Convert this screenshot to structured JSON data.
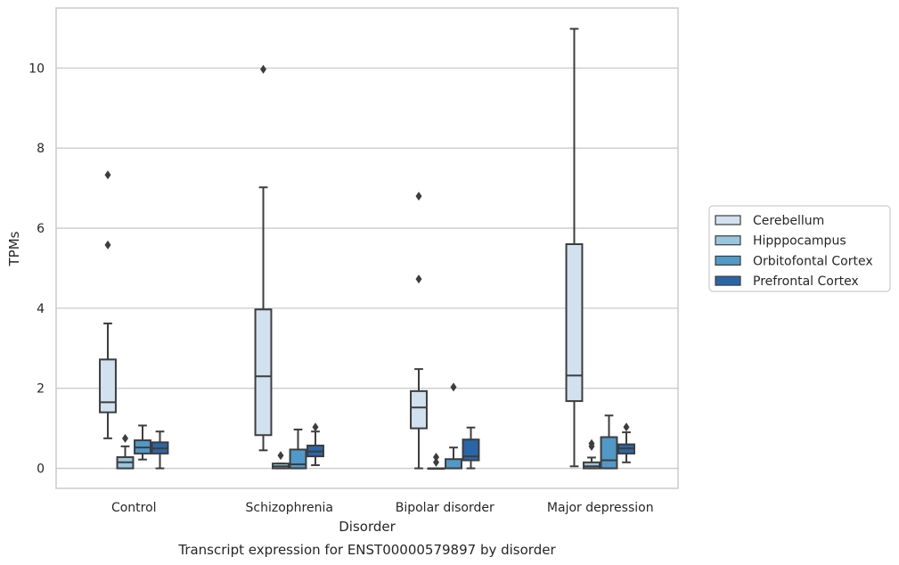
{
  "chart_data": {
    "type": "box",
    "title": "",
    "caption": "Transcript expression for ENST00000579897 by disorder",
    "xlabel": "Disorder",
    "ylabel": "TPMs",
    "ylim": [
      -0.5,
      11.5
    ],
    "yticks": [
      0,
      2,
      4,
      6,
      8,
      10
    ],
    "grid": true,
    "legend_position": "right",
    "categories": [
      "Control",
      "Schizophrenia",
      "Bipolar disorder",
      "Major depression"
    ],
    "series": [
      {
        "name": "Cerebellum",
        "color": "#d1e1f0",
        "boxes": [
          {
            "whisker_low": 0.75,
            "q1": 1.4,
            "median": 1.65,
            "q3": 2.72,
            "whisker_high": 3.62,
            "outliers": [
              5.58,
              7.33
            ]
          },
          {
            "whisker_low": 0.45,
            "q1": 0.83,
            "median": 2.3,
            "q3": 3.97,
            "whisker_high": 7.02,
            "outliers": [
              9.97
            ]
          },
          {
            "whisker_low": 0.0,
            "q1": 1.0,
            "median": 1.52,
            "q3": 1.93,
            "whisker_high": 2.48,
            "outliers": [
              4.73,
              6.8
            ]
          },
          {
            "whisker_low": 0.05,
            "q1": 1.68,
            "median": 2.32,
            "q3": 5.6,
            "whisker_high": 10.98,
            "outliers": []
          }
        ]
      },
      {
        "name": "Hipppocampus",
        "color": "#9ac5df",
        "boxes": [
          {
            "whisker_low": 0.0,
            "q1": 0.0,
            "median": 0.15,
            "q3": 0.28,
            "whisker_high": 0.55,
            "outliers": [
              0.75
            ]
          },
          {
            "whisker_low": 0.0,
            "q1": 0.0,
            "median": 0.05,
            "q3": 0.12,
            "whisker_high": 0.12,
            "outliers": [
              0.32
            ]
          },
          {
            "whisker_low": 0.0,
            "q1": 0.0,
            "median": 0.0,
            "q3": 0.0,
            "whisker_high": 0.0,
            "outliers": [
              0.15,
              0.28
            ]
          },
          {
            "whisker_low": 0.0,
            "q1": 0.0,
            "median": 0.05,
            "q3": 0.15,
            "whisker_high": 0.27,
            "outliers": [
              0.55,
              0.62
            ]
          }
        ]
      },
      {
        "name": "Orbitofontal Cortex",
        "color": "#5199c8",
        "boxes": [
          {
            "whisker_low": 0.22,
            "q1": 0.37,
            "median": 0.52,
            "q3": 0.7,
            "whisker_high": 1.07,
            "outliers": []
          },
          {
            "whisker_low": 0.0,
            "q1": 0.0,
            "median": 0.1,
            "q3": 0.47,
            "whisker_high": 0.97,
            "outliers": []
          },
          {
            "whisker_low": 0.0,
            "q1": 0.0,
            "median": 0.0,
            "q3": 0.23,
            "whisker_high": 0.52,
            "outliers": [
              2.03
            ]
          },
          {
            "whisker_low": 0.0,
            "q1": 0.0,
            "median": 0.2,
            "q3": 0.78,
            "whisker_high": 1.32,
            "outliers": []
          }
        ]
      },
      {
        "name": "Prefrontal Cortex",
        "color": "#2966a8",
        "boxes": [
          {
            "whisker_low": 0.0,
            "q1": 0.37,
            "median": 0.5,
            "q3": 0.65,
            "whisker_high": 0.92,
            "outliers": []
          },
          {
            "whisker_low": 0.08,
            "q1": 0.3,
            "median": 0.42,
            "q3": 0.57,
            "whisker_high": 0.92,
            "outliers": [
              1.03
            ]
          },
          {
            "whisker_low": 0.0,
            "q1": 0.2,
            "median": 0.3,
            "q3": 0.72,
            "whisker_high": 1.02,
            "outliers": []
          },
          {
            "whisker_low": 0.15,
            "q1": 0.37,
            "median": 0.5,
            "q3": 0.6,
            "whisker_high": 0.9,
            "outliers": [
              1.03
            ]
          }
        ]
      }
    ]
  }
}
